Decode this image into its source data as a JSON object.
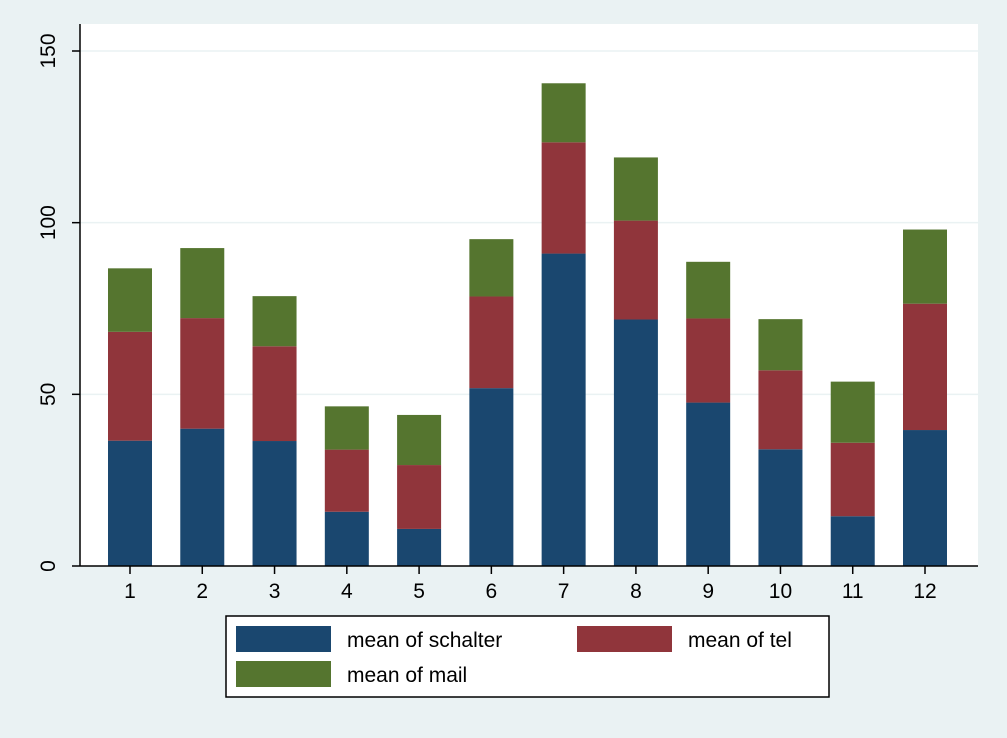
{
  "chart_data": {
    "type": "bar",
    "stacked": true,
    "categories": [
      "1",
      "2",
      "3",
      "4",
      "5",
      "6",
      "7",
      "8",
      "9",
      "10",
      "11",
      "12"
    ],
    "series": [
      {
        "name": "mean of schalter",
        "color": "#1a476f",
        "values": [
          36.5,
          40,
          36.4,
          15.8,
          10.8,
          51.8,
          91,
          71.8,
          47.6,
          34,
          14.5,
          39.6
        ]
      },
      {
        "name": "mean of tel",
        "color": "#90353b",
        "values": [
          31.7,
          32.2,
          27.6,
          18.1,
          18.6,
          26.7,
          32.4,
          28.8,
          24.5,
          23,
          21.4,
          36.8
        ]
      },
      {
        "name": "mean of mail",
        "color": "#55752f",
        "values": [
          18.5,
          20.4,
          14.6,
          12.6,
          14.6,
          16.7,
          17.2,
          18.4,
          16.5,
          14.9,
          17.8,
          21.6
        ]
      }
    ],
    "y_ticks": [
      0,
      50,
      100,
      150
    ],
    "ylim": [
      0,
      150
    ],
    "title": "",
    "xlabel": "",
    "ylabel": "",
    "grid": true,
    "legend": {
      "placement": "bottom",
      "columns": 2
    },
    "colors": {
      "plot_background": "#ffffff",
      "outer_background": "#eaf2f3",
      "grid": "#eaf2f3"
    }
  }
}
